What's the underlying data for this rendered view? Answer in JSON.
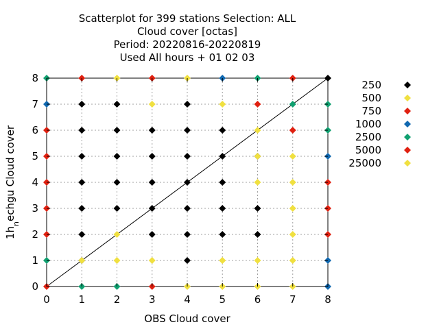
{
  "chart_data": {
    "type": "scatter",
    "title_lines": [
      "Scatterplot for  399 stations Selection: ALL",
      "Cloud cover [octas]",
      "Period: 20220816-20220819",
      "Used  All hours  + 01 02 03"
    ],
    "xlabel": "OBS Cloud cover",
    "ylabel_parts": {
      "pre": "1h",
      "sub": "n",
      "post": "echgu Cloud cover"
    },
    "xlim": [
      0,
      8
    ],
    "ylim": [
      0,
      8
    ],
    "xticks": [
      0,
      1,
      2,
      3,
      4,
      5,
      6,
      7,
      8
    ],
    "yticks": [
      0,
      1,
      2,
      3,
      4,
      5,
      6,
      7,
      8
    ],
    "grid": true,
    "diagonal": true,
    "legend_position": "right",
    "series": [
      {
        "name": "250",
        "color": "#000000",
        "points": [
          [
            1,
            1
          ],
          [
            1,
            2
          ],
          [
            1,
            3
          ],
          [
            1,
            4
          ],
          [
            1,
            5
          ],
          [
            1,
            6
          ],
          [
            1,
            7
          ],
          [
            2,
            3
          ],
          [
            2,
            4
          ],
          [
            2,
            5
          ],
          [
            2,
            6
          ],
          [
            2,
            7
          ],
          [
            3,
            2
          ],
          [
            3,
            3
          ],
          [
            3,
            4
          ],
          [
            3,
            5
          ],
          [
            3,
            6
          ],
          [
            4,
            1
          ],
          [
            4,
            2
          ],
          [
            4,
            3
          ],
          [
            4,
            4
          ],
          [
            4,
            5
          ],
          [
            4,
            6
          ],
          [
            4,
            7
          ],
          [
            5,
            2
          ],
          [
            5,
            3
          ],
          [
            5,
            4
          ],
          [
            5,
            5
          ],
          [
            5,
            6
          ],
          [
            6,
            2
          ],
          [
            6,
            3
          ],
          [
            6,
            5
          ],
          [
            8,
            8
          ]
        ]
      },
      {
        "name": "500",
        "color": "#f0e040",
        "points": [
          [
            1,
            1
          ],
          [
            2,
            1
          ],
          [
            2,
            2
          ],
          [
            2,
            8
          ],
          [
            3,
            1
          ],
          [
            3,
            7
          ],
          [
            4,
            8
          ],
          [
            5,
            1
          ],
          [
            5,
            7
          ],
          [
            6,
            6
          ]
        ]
      },
      {
        "name": "750",
        "color": "#e02010",
        "points": [
          [
            0,
            2
          ],
          [
            0,
            3
          ],
          [
            0,
            4
          ],
          [
            0,
            5
          ],
          [
            0,
            6
          ],
          [
            1,
            8
          ],
          [
            3,
            8
          ],
          [
            7,
            8
          ]
        ]
      },
      {
        "name": "1000",
        "color": "#1068b0",
        "points": [
          [
            0,
            7
          ],
          [
            5,
            8
          ],
          [
            8,
            1
          ],
          [
            8,
            5
          ],
          [
            8,
            0
          ]
        ]
      },
      {
        "name": "2500",
        "color": "#10a070",
        "points": [
          [
            0,
            1
          ],
          [
            0,
            8
          ],
          [
            1,
            0
          ],
          [
            2,
            0
          ],
          [
            6,
            8
          ],
          [
            7,
            7
          ],
          [
            8,
            6
          ],
          [
            8,
            7
          ]
        ]
      },
      {
        "name": "5000",
        "color": "#e02010",
        "points": [
          [
            0,
            0
          ],
          [
            3,
            0
          ],
          [
            6,
            7
          ],
          [
            7,
            6
          ],
          [
            8,
            2
          ],
          [
            8,
            3
          ],
          [
            8,
            4
          ]
        ]
      },
      {
        "name": "25000",
        "color": "#f0e040",
        "points": [
          [
            4,
            0
          ],
          [
            5,
            0
          ],
          [
            6,
            0
          ],
          [
            7,
            0
          ],
          [
            6,
            1
          ],
          [
            7,
            1
          ],
          [
            7,
            2
          ],
          [
            7,
            3
          ],
          [
            7,
            4
          ],
          [
            7,
            5
          ],
          [
            6,
            4
          ],
          [
            6,
            5
          ],
          [
            5,
            1
          ]
        ]
      }
    ]
  }
}
